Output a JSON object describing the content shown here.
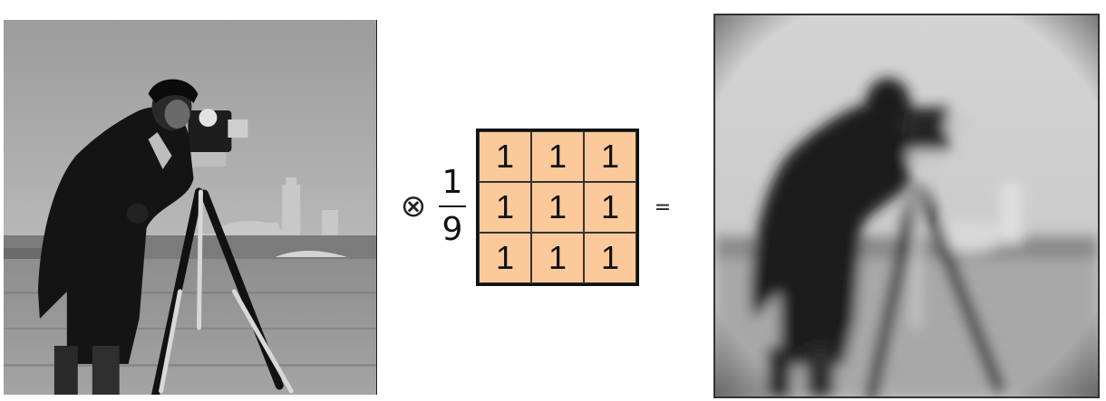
{
  "operation": {
    "operator_symbol": "⊗",
    "fraction": {
      "numerator": "1",
      "denominator": "9"
    },
    "equals_symbol": "="
  },
  "kernel": {
    "rows": [
      [
        "1",
        "1",
        "1"
      ],
      [
        "1",
        "1",
        "1"
      ],
      [
        "1",
        "1",
        "1"
      ]
    ],
    "fill_color": "#fbc99a"
  },
  "images": {
    "original": {
      "style": "grayscale-sharp"
    },
    "result": {
      "style": "grayscale-box-blurred"
    }
  }
}
